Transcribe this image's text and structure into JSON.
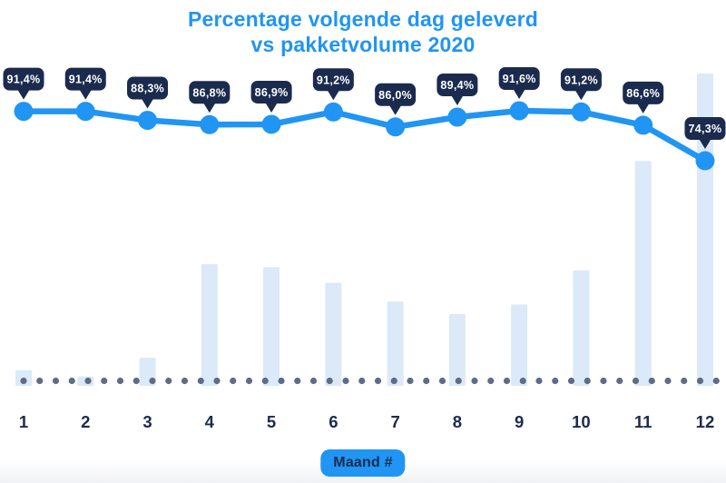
{
  "title": {
    "line1": "Percentage volgende dag geleverd",
    "line2": "vs pakketvolume 2020"
  },
  "x_axis": {
    "label": "Maand #"
  },
  "chart_data": {
    "type": "line+bar",
    "title": "Percentage volgende dag geleverd vs pakketvolume 2020",
    "xlabel": "Maand #",
    "ylabel": "",
    "legend": "none",
    "grid": "dotted baseline only, no y-axis shown",
    "categories": [
      "1",
      "2",
      "3",
      "4",
      "5",
      "6",
      "7",
      "8",
      "9",
      "10",
      "11",
      "12"
    ],
    "series": [
      {
        "name": "Percentage volgende dag geleverd",
        "type": "line",
        "unit": "%",
        "values": [
          91.4,
          91.4,
          88.3,
          86.8,
          86.9,
          91.2,
          86.0,
          89.4,
          91.6,
          91.2,
          86.6,
          74.3
        ],
        "labels": [
          "91,4%",
          "91,4%",
          "88,3%",
          "86,8%",
          "86,9%",
          "91,2%",
          "86,0%",
          "89,4%",
          "91,6%",
          "91,2%",
          "86,6%",
          "74,3%"
        ]
      },
      {
        "name": "Pakketvolume 2020",
        "type": "bar",
        "unit": "relative volume (no numeric axis shown, max month = 1.0)",
        "values": [
          0.05,
          0.03,
          0.09,
          0.39,
          0.38,
          0.33,
          0.27,
          0.23,
          0.26,
          0.37,
          0.72,
          1.0
        ]
      }
    ]
  },
  "colors": {
    "accent_blue": "#2095f3",
    "navy": "#1b2b4e",
    "bar_fill": "#dbe9f8",
    "baseline_dot": "#5d6c87",
    "badge_text": "#ffffff",
    "background": "#ffffff"
  }
}
